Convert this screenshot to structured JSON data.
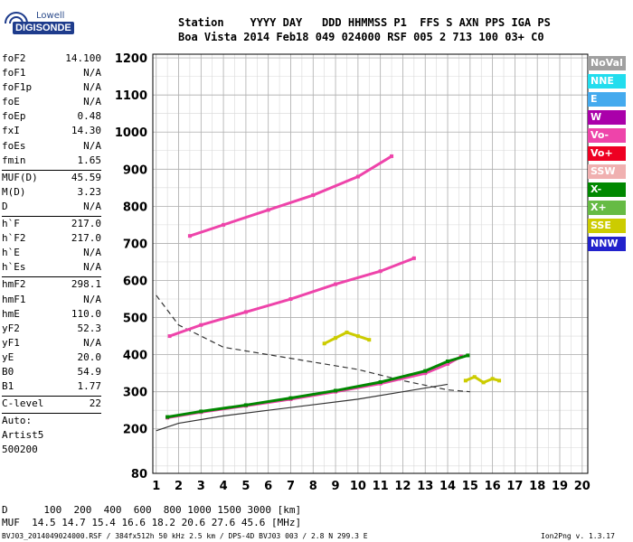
{
  "logo": {
    "brand": "Lowell",
    "product": "DIGISONDE"
  },
  "header": {
    "line1": "Station    YYYY DAY   DDD HHMMSS P1  FFS S AXN PPS IGA PS",
    "line2": "Boa Vista 2014 Feb18 049 024000 RSF 005 2 713 100 03+ C0"
  },
  "params": [
    {
      "name": "foF2",
      "value": "14.100"
    },
    {
      "name": "foF1",
      "value": "N/A"
    },
    {
      "name": "foF1p",
      "value": "N/A"
    },
    {
      "name": "foE",
      "value": "N/A"
    },
    {
      "name": "foEp",
      "value": "0.48"
    },
    {
      "name": "fxI",
      "value": "14.30"
    },
    {
      "name": "foEs",
      "value": "N/A"
    },
    {
      "name": "fmin",
      "value": "1.65"
    },
    {
      "sep": true
    },
    {
      "name": "MUF(D)",
      "value": "45.59"
    },
    {
      "name": "M(D)",
      "value": "3.23"
    },
    {
      "name": "D",
      "value": "N/A"
    },
    {
      "sep": true
    },
    {
      "name": "h`F",
      "value": "217.0"
    },
    {
      "name": "h`F2",
      "value": "217.0"
    },
    {
      "name": "h`E",
      "value": "N/A"
    },
    {
      "name": "h`Es",
      "value": "N/A"
    },
    {
      "sep": true
    },
    {
      "name": "hmF2",
      "value": "298.1"
    },
    {
      "name": "hmF1",
      "value": "N/A"
    },
    {
      "name": "hmE",
      "value": "110.0"
    },
    {
      "name": "yF2",
      "value": "52.3"
    },
    {
      "name": "yF1",
      "value": "N/A"
    },
    {
      "name": "yE",
      "value": "20.0"
    },
    {
      "name": "B0",
      "value": "54.9"
    },
    {
      "name": "B1",
      "value": "1.77"
    },
    {
      "sep": true
    },
    {
      "name": "C-level",
      "value": "22"
    },
    {
      "sep": true
    },
    {
      "name": "Auto:",
      "value": ""
    },
    {
      "name": "Artist5",
      "value": ""
    },
    {
      "name": "500200",
      "value": ""
    }
  ],
  "legend": [
    {
      "label": "NoVal",
      "color": "#a0a0a0"
    },
    {
      "label": "NNE",
      "color": "#22ddee"
    },
    {
      "label": "E",
      "color": "#44aaee"
    },
    {
      "label": "W",
      "color": "#aa00aa"
    },
    {
      "label": "Vo-",
      "color": "#ee44aa"
    },
    {
      "label": "Vo+",
      "color": "#ee0022"
    },
    {
      "label": "SSW",
      "color": "#f0b0b0"
    },
    {
      "label": "X-",
      "color": "#008800"
    },
    {
      "label": "X+",
      "color": "#66bb44"
    },
    {
      "label": "SSE",
      "color": "#cccc00"
    },
    {
      "label": "NNW",
      "color": "#2222cc"
    }
  ],
  "footer": {
    "dist_line": "D      100  200  400  600  800 1000 1500 3000 [km]",
    "muf_line": "MUF  14.5 14.7 15.4 16.6 18.2 20.6 27.6 45.6 [MHz]",
    "info_line": "BVJ03_2014049024000.RSF / 384fx512h 50 kHz 2.5 km / DPS-4D BVJ03 003 / 2.8 N 299.3 E",
    "version": "Ion2Png v. 1.3.17"
  },
  "chart_data": {
    "type": "scatter",
    "x_ticks": [
      1,
      2,
      3,
      4,
      5,
      6,
      7,
      8,
      9,
      10,
      11,
      12,
      13,
      14,
      15,
      16,
      17,
      18,
      19,
      20
    ],
    "y_ticks": [
      80,
      200,
      300,
      400,
      500,
      600,
      700,
      800,
      900,
      1000,
      1100,
      1200
    ],
    "xlim": [
      0.85,
      20.25
    ],
    "ylim": [
      80,
      1210
    ],
    "grid": true,
    "legend_position": "right",
    "traces": [
      {
        "name": "Vo-",
        "color": "#ee44aa",
        "x": [
          1.5,
          3,
          5,
          7,
          9,
          11,
          13,
          14,
          14.6
        ],
        "y": [
          230,
          245,
          262,
          280,
          300,
          322,
          350,
          375,
          395
        ]
      },
      {
        "name": "X-",
        "color": "#008800",
        "x": [
          1.5,
          3,
          5,
          7,
          9,
          11,
          13,
          14,
          14.9
        ],
        "y": [
          232,
          247,
          264,
          283,
          303,
          326,
          356,
          382,
          398
        ]
      },
      {
        "name": "Vo-",
        "color": "#ee44aa",
        "x": [
          1.6,
          3,
          5,
          7,
          9,
          11,
          12.5
        ],
        "y": [
          450,
          480,
          515,
          550,
          590,
          625,
          660
        ]
      },
      {
        "name": "Vo-",
        "color": "#ee44aa",
        "x": [
          2.5,
          4,
          6,
          8,
          10,
          11.5
        ],
        "y": [
          720,
          750,
          790,
          830,
          880,
          935
        ]
      },
      {
        "name": "SSE",
        "color": "#cccc00",
        "x": [
          8.5,
          9,
          9.5,
          10,
          10.5
        ],
        "y": [
          430,
          445,
          460,
          450,
          440
        ]
      },
      {
        "name": "SSE",
        "color": "#cccc00",
        "x": [
          14.8,
          15.2,
          15.6,
          16,
          16.3
        ],
        "y": [
          330,
          340,
          325,
          335,
          330
        ]
      }
    ],
    "model_curves": [
      {
        "x": [
          1,
          2,
          4,
          6,
          8,
          10,
          12,
          14
        ],
        "y": [
          195,
          215,
          235,
          250,
          265,
          280,
          300,
          320
        ],
        "style": "solid"
      },
      {
        "x": [
          1,
          2,
          4,
          6,
          8,
          10,
          12,
          14,
          15
        ],
        "y": [
          560,
          480,
          420,
          400,
          380,
          360,
          330,
          305,
          300
        ],
        "style": "dashed"
      }
    ]
  }
}
